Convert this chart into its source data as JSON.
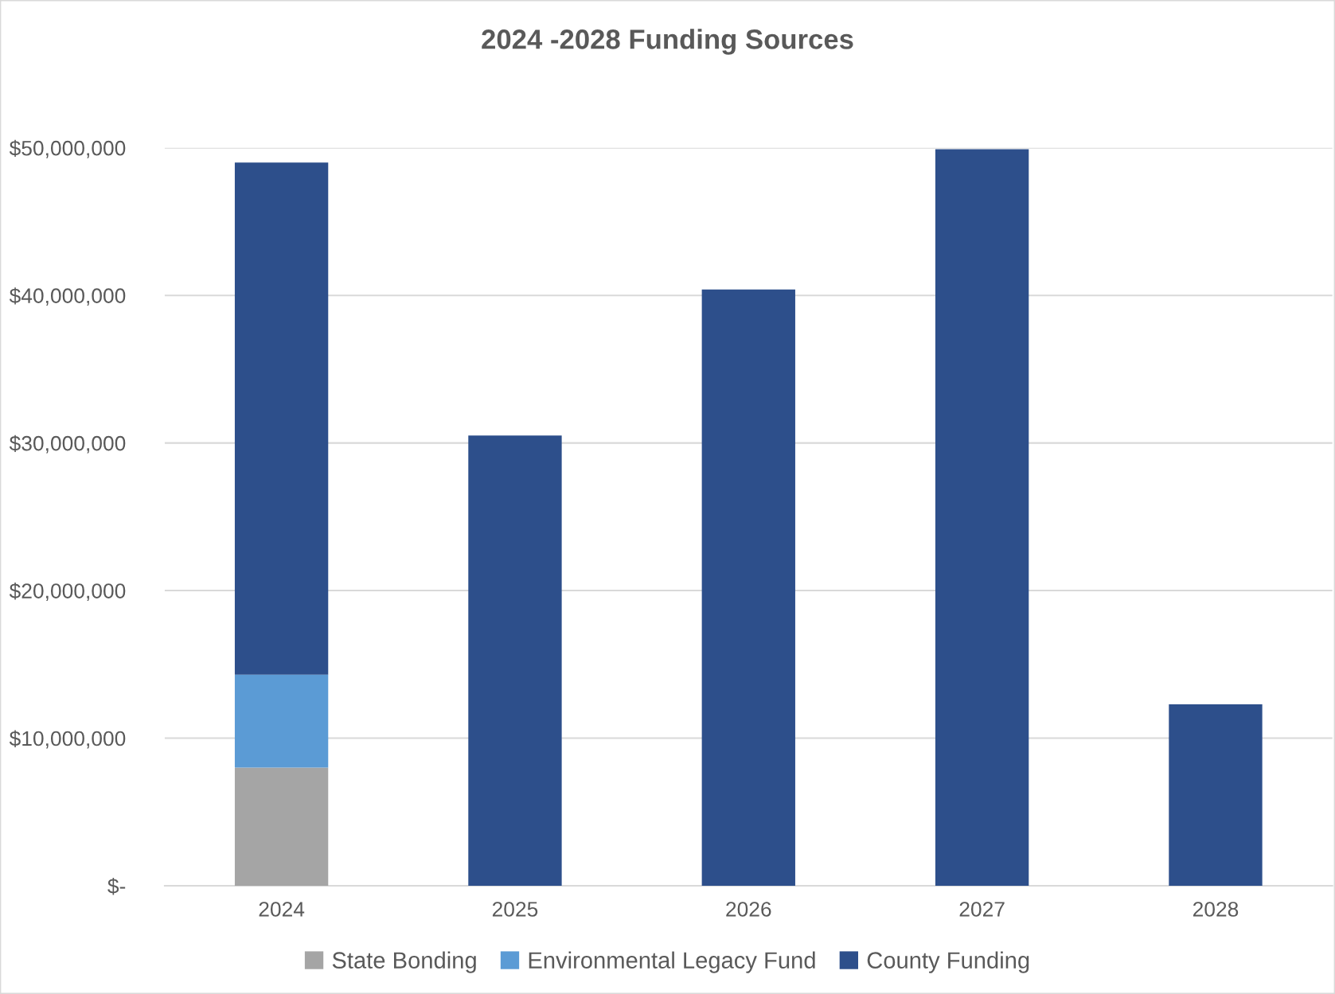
{
  "chart_data": {
    "type": "bar",
    "title": "2024 -2028 Funding Sources",
    "categories": [
      "2024",
      "2025",
      "2026",
      "2027",
      "2028"
    ],
    "stacked": true,
    "series": [
      {
        "name": "State Bonding",
        "color": "#a5a5a5",
        "values": [
          8000000,
          null,
          null,
          null,
          null
        ]
      },
      {
        "name": "Environmental Legacy Fund",
        "color": "#5b9bd5",
        "values": [
          6300000,
          null,
          null,
          null,
          null
        ]
      },
      {
        "name": "County Funding",
        "color": "#2d4f8b",
        "values": [
          34700000,
          30500000,
          40400000,
          49900000,
          12300000
        ]
      }
    ],
    "ylim": [
      0,
      50000000
    ],
    "yticks": [
      {
        "value": 0,
        "label": "$-"
      },
      {
        "value": 10000000,
        "label": "$10,000,000"
      },
      {
        "value": 20000000,
        "label": "$20,000,000"
      },
      {
        "value": 30000000,
        "label": "$30,000,000"
      },
      {
        "value": 40000000,
        "label": "$40,000,000"
      },
      {
        "value": 50000000,
        "label": "$50,000,000"
      }
    ],
    "grid": "y",
    "legend": "bottom"
  }
}
